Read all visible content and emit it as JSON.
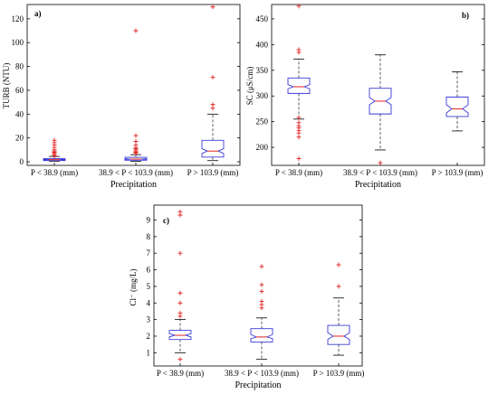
{
  "chart_data": [
    {
      "type": "box",
      "panel_label": "a)",
      "ylabel": "TURB (NTU)",
      "xlabel": "Precipitation",
      "categories": [
        "P < 38.9 (mm)",
        "38.9 < P < 103.9 (mm)",
        "P > 103.9 (mm)"
      ],
      "ylim": [
        -3,
        132
      ],
      "yticks": [
        0,
        20,
        40,
        60,
        80,
        100,
        120
      ],
      "notched": true,
      "boxes": [
        {
          "min": 0.5,
          "q1": 1.0,
          "median": 1.8,
          "q3": 2.6,
          "max": 4.5,
          "notch": [
            1.6,
            2.0
          ],
          "outliers": [
            5,
            6,
            7,
            8,
            9,
            10,
            12,
            14,
            16,
            18
          ]
        },
        {
          "min": 0.5,
          "q1": 1.3,
          "median": 2.3,
          "q3": 3.8,
          "max": 6.0,
          "notch": [
            2.0,
            2.6
          ],
          "outliers": [
            7,
            8,
            9,
            10,
            11,
            12,
            14,
            17,
            22,
            110
          ]
        },
        {
          "min": 1.0,
          "q1": 4.0,
          "median": 9.0,
          "q3": 18.0,
          "max": 40.0,
          "notch": [
            7.0,
            11.0
          ],
          "outliers": [
            45,
            48,
            71,
            130
          ]
        }
      ]
    },
    {
      "type": "box",
      "panel_label": "b)",
      "ylabel": "SC (μS/cm)",
      "xlabel": "Precipitation",
      "categories": [
        "P < 38.9 (mm)",
        "38.9 < P < 103.9 (mm)",
        "P > 103.9 (mm)"
      ],
      "ylim": [
        165,
        478
      ],
      "yticks": [
        200,
        250,
        300,
        350,
        400,
        450
      ],
      "notched": true,
      "boxes": [
        {
          "min": 255,
          "q1": 305,
          "median": 318,
          "q3": 335,
          "max": 372,
          "notch": [
            314,
            322
          ],
          "outliers": [
            385,
            390,
            475,
            258,
            248,
            242,
            238,
            233,
            228,
            220,
            178
          ]
        },
        {
          "min": 195,
          "q1": 265,
          "median": 290,
          "q3": 315,
          "max": 380,
          "notch": [
            283,
            297
          ],
          "outliers": [
            170
          ]
        },
        {
          "min": 232,
          "q1": 260,
          "median": 275,
          "q3": 298,
          "max": 347,
          "notch": [
            267,
            283
          ],
          "outliers": []
        }
      ]
    },
    {
      "type": "box",
      "panel_label": "c)",
      "ylabel": "Cl⁻ (mg/L)",
      "xlabel": "Precipitation",
      "categories": [
        "P < 38.9 (mm)",
        "38.9 < P < 103.9 (mm)",
        "P > 103.9 (mm)"
      ],
      "ylim": [
        0.2,
        9.9
      ],
      "yticks": [
        1,
        2,
        3,
        4,
        5,
        6,
        7,
        8,
        9
      ],
      "notched": true,
      "boxes": [
        {
          "min": 1.0,
          "q1": 1.8,
          "median": 2.05,
          "q3": 2.35,
          "max": 3.0,
          "notch": [
            1.95,
            2.15
          ],
          "outliers": [
            0.6,
            3.2,
            3.4,
            4.0,
            4.6,
            7.0,
            9.3,
            9.5
          ]
        },
        {
          "min": 0.6,
          "q1": 1.65,
          "median": 1.95,
          "q3": 2.45,
          "max": 3.1,
          "notch": [
            1.85,
            2.1
          ],
          "outliers": [
            3.7,
            3.9,
            4.1,
            4.7,
            5.1,
            6.2
          ]
        },
        {
          "min": 0.85,
          "q1": 1.5,
          "median": 2.0,
          "q3": 2.65,
          "max": 4.3,
          "notch": [
            1.8,
            2.2
          ],
          "outliers": [
            5.0,
            6.3
          ]
        }
      ]
    }
  ]
}
